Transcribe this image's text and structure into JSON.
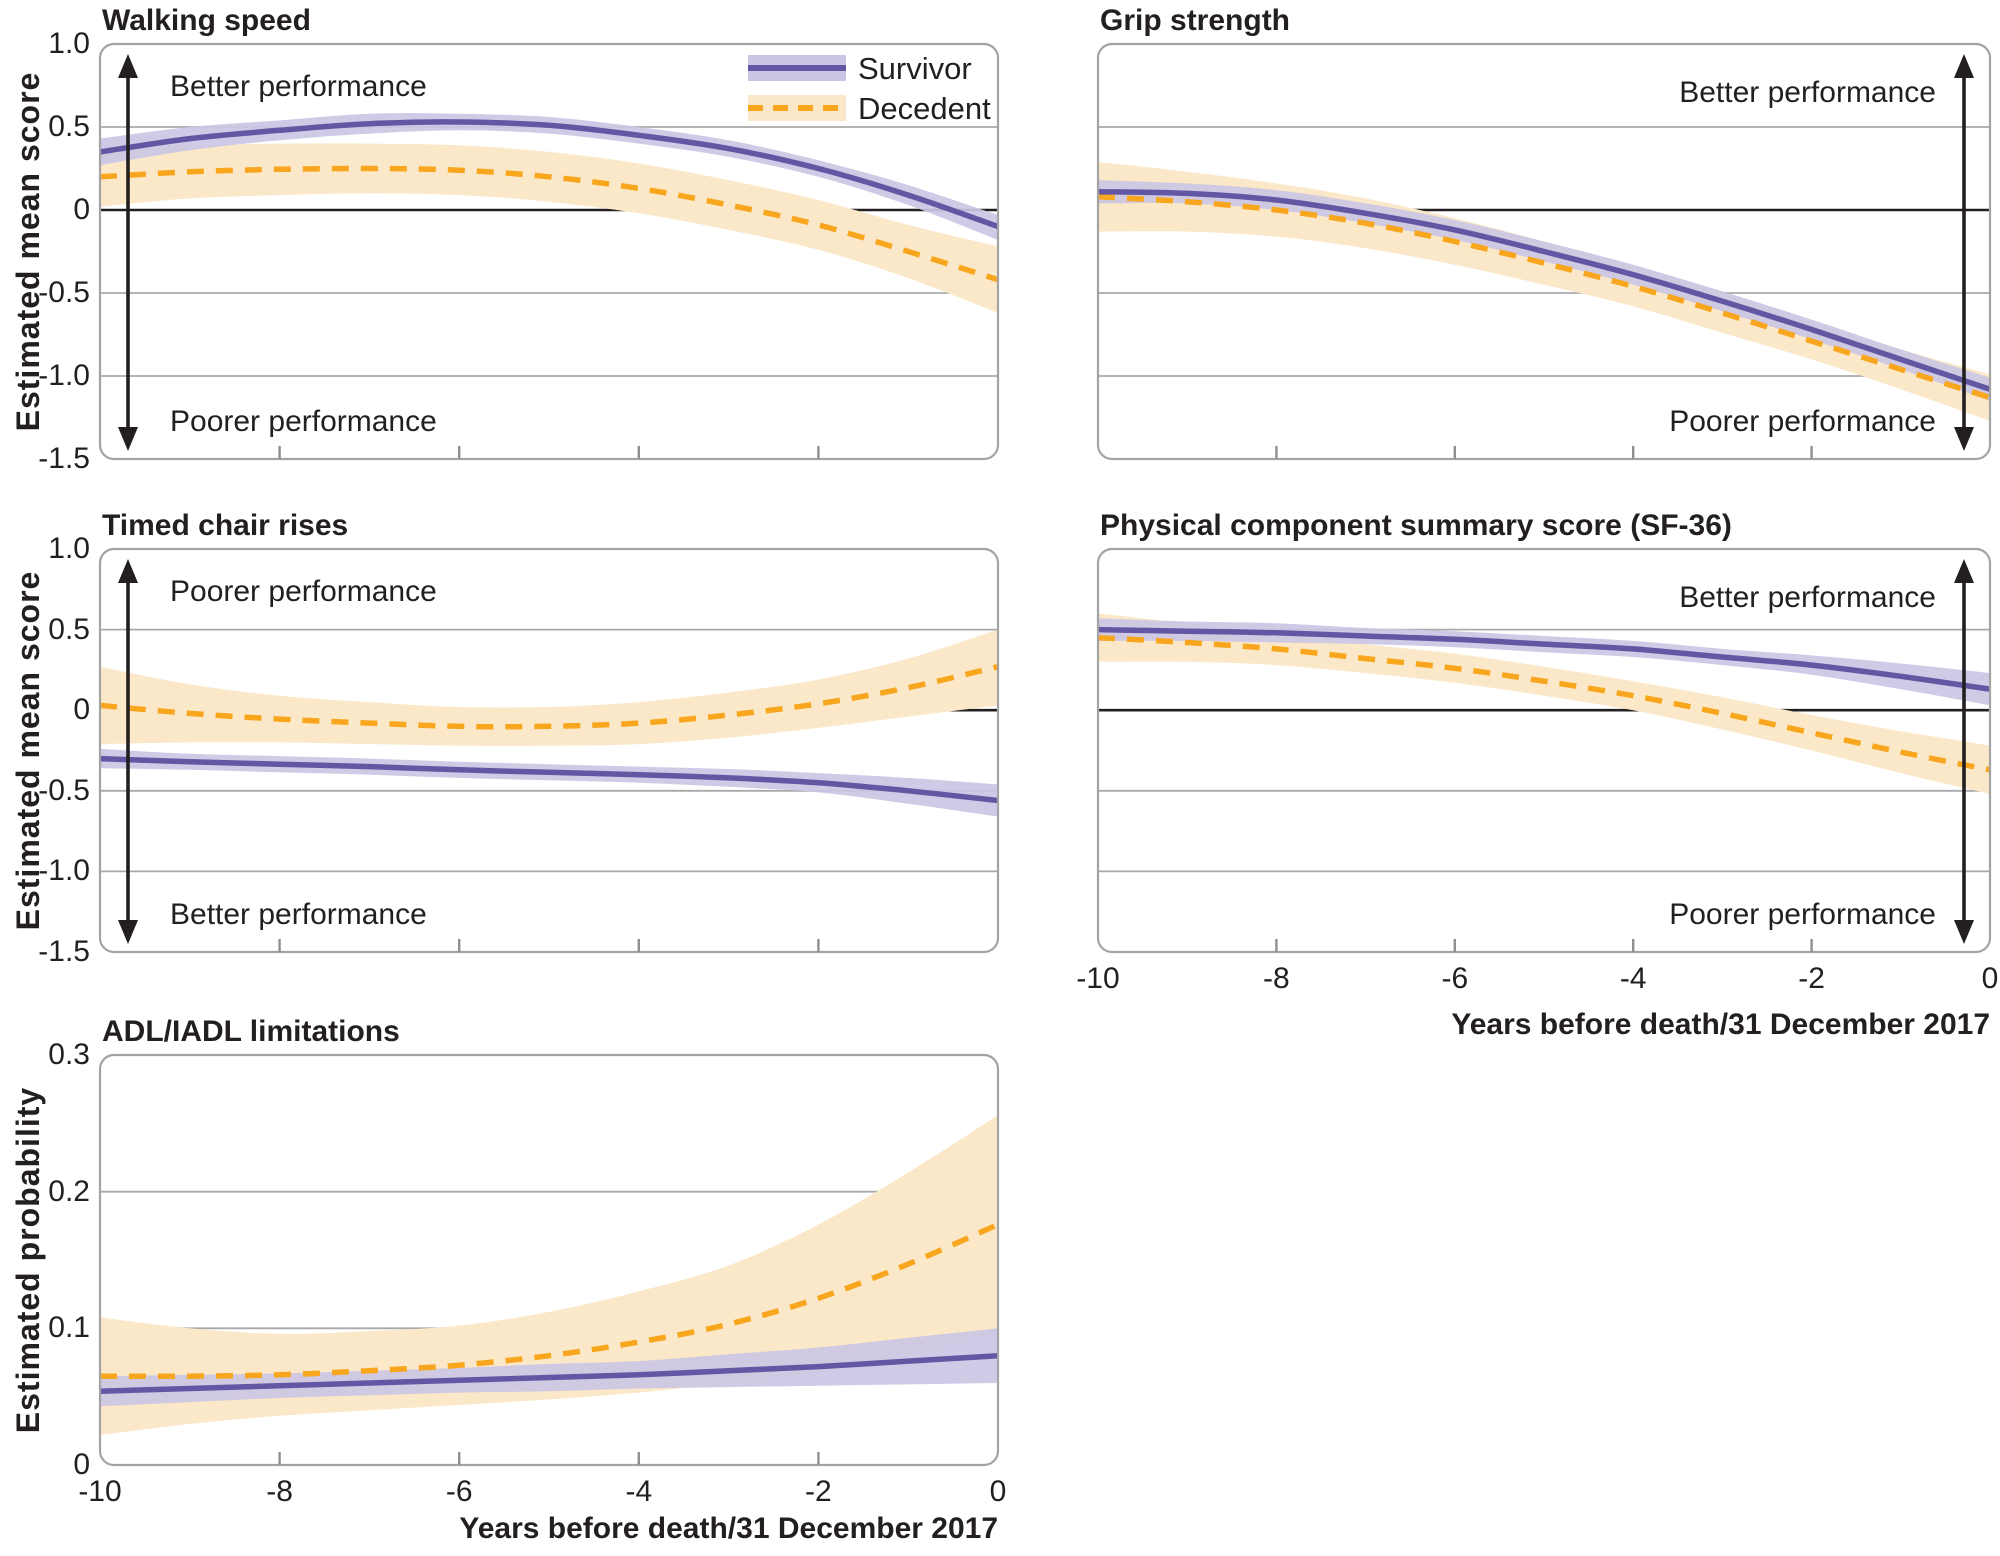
{
  "figure": {
    "x_tick_labels": [
      "-10",
      "-8",
      "-6",
      "-4",
      "-2",
      "0"
    ],
    "x_ticks": [
      -10,
      -8,
      -6,
      -4,
      -2,
      0
    ],
    "inner_x_ticks": [
      -8,
      -6,
      -4,
      -2
    ],
    "colors": {
      "survivor_line": "#6157A3",
      "survivor_band": "#CBC6E4",
      "decedent_line": "#F8A61E",
      "decedent_band": "#FBE8C9",
      "grid": "#A9A9A9",
      "panel_border": "#A3A3A3",
      "zero_line": "#231F20",
      "text": "#231F20",
      "tick": "#8F8F8F"
    }
  },
  "chart_data": [
    {
      "id": "walking-speed",
      "type": "line",
      "title": "Walking speed",
      "ylabel": "Estimated mean score",
      "xlabel": null,
      "ylim": [
        -1.5,
        1.0
      ],
      "xlim": [
        -10,
        0
      ],
      "y_ticks": [
        1.0,
        0.5,
        0,
        -0.5,
        -1.0,
        -1.5
      ],
      "y_tick_labels": [
        "1.0",
        "0.5",
        "0",
        "-0.5",
        "-1.0",
        "-1.5"
      ],
      "show_y_tick_labels": true,
      "show_x_tick_labels": false,
      "grid_y": [
        0.5,
        -0.5,
        -1.0
      ],
      "zero_line": true,
      "annotation": {
        "side": "left",
        "top": "Better performance",
        "bottom": "Poorer performance"
      },
      "legend": {
        "show": true,
        "position": "top-right",
        "entries": [
          "Survivor",
          "Decedent"
        ]
      },
      "x": [
        -10,
        -9,
        -8,
        -7,
        -6,
        -5,
        -4,
        -3,
        -2,
        -1,
        0
      ],
      "series": [
        {
          "name": "Decedent",
          "style": "dashed",
          "y": [
            0.2,
            0.23,
            0.245,
            0.25,
            0.24,
            0.2,
            0.13,
            0.03,
            -0.09,
            -0.25,
            -0.42
          ],
          "lo": [
            0.02,
            0.07,
            0.09,
            0.1,
            0.09,
            0.05,
            -0.02,
            -0.12,
            -0.24,
            -0.41,
            -0.62
          ],
          "hi": [
            0.38,
            0.39,
            0.4,
            0.4,
            0.39,
            0.35,
            0.28,
            0.18,
            0.06,
            -0.09,
            -0.22
          ]
        },
        {
          "name": "Survivor",
          "style": "solid",
          "y": [
            0.35,
            0.43,
            0.48,
            0.52,
            0.53,
            0.51,
            0.45,
            0.37,
            0.25,
            0.09,
            -0.1
          ],
          "lo": [
            0.27,
            0.36,
            0.42,
            0.46,
            0.48,
            0.46,
            0.4,
            0.32,
            0.2,
            0.03,
            -0.18
          ],
          "hi": [
            0.43,
            0.5,
            0.54,
            0.58,
            0.58,
            0.56,
            0.5,
            0.42,
            0.3,
            0.15,
            -0.03
          ]
        }
      ]
    },
    {
      "id": "grip-strength",
      "type": "line",
      "title": "Grip strength",
      "ylabel": null,
      "xlabel": null,
      "ylim": [
        -1.5,
        1.0
      ],
      "xlim": [
        -10,
        0
      ],
      "y_ticks": [
        1.0,
        0.5,
        0,
        -0.5,
        -1.0,
        -1.5
      ],
      "y_tick_labels": [],
      "show_y_tick_labels": false,
      "show_x_tick_labels": false,
      "grid_y": [
        0.5,
        -0.5,
        -1.0
      ],
      "zero_line": true,
      "annotation": {
        "side": "right",
        "top": "Better performance",
        "bottom": "Poorer performance"
      },
      "legend": {
        "show": false,
        "entries": []
      },
      "x": [
        -10,
        -9,
        -8,
        -7,
        -6,
        -5,
        -4,
        -3,
        -2,
        -1,
        0
      ],
      "series": [
        {
          "name": "Decedent",
          "style": "dashed",
          "y": [
            0.08,
            0.05,
            0.0,
            -0.08,
            -0.19,
            -0.32,
            -0.46,
            -0.62,
            -0.79,
            -0.96,
            -1.13
          ],
          "lo": [
            -0.13,
            -0.13,
            -0.16,
            -0.23,
            -0.33,
            -0.45,
            -0.58,
            -0.74,
            -0.9,
            -1.08,
            -1.27
          ],
          "hi": [
            0.29,
            0.23,
            0.16,
            0.07,
            -0.05,
            -0.19,
            -0.34,
            -0.5,
            -0.68,
            -0.84,
            -0.99
          ]
        },
        {
          "name": "Survivor",
          "style": "solid",
          "y": [
            0.11,
            0.1,
            0.06,
            -0.02,
            -0.12,
            -0.25,
            -0.39,
            -0.55,
            -0.72,
            -0.9,
            -1.08
          ],
          "lo": [
            0.04,
            0.04,
            0.0,
            -0.08,
            -0.18,
            -0.31,
            -0.45,
            -0.61,
            -0.78,
            -0.96,
            -1.15
          ],
          "hi": [
            0.18,
            0.16,
            0.12,
            0.04,
            -0.06,
            -0.19,
            -0.33,
            -0.49,
            -0.66,
            -0.84,
            -1.01
          ]
        }
      ]
    },
    {
      "id": "timed-chair-rises",
      "type": "line",
      "title": "Timed chair rises",
      "ylabel": "Estimated mean score",
      "xlabel": null,
      "ylim": [
        -1.5,
        1.0
      ],
      "xlim": [
        -10,
        0
      ],
      "y_ticks": [
        1.0,
        0.5,
        0,
        -0.5,
        -1.0,
        -1.5
      ],
      "y_tick_labels": [
        "1.0",
        "0.5",
        "0",
        "-0.5",
        "-1.0",
        "-1.5"
      ],
      "show_y_tick_labels": true,
      "show_x_tick_labels": false,
      "grid_y": [
        0.5,
        -0.5,
        -1.0
      ],
      "zero_line": true,
      "annotation": {
        "side": "left",
        "top": "Poorer performance",
        "bottom": "Better performance"
      },
      "legend": {
        "show": false,
        "entries": []
      },
      "x": [
        -10,
        -9,
        -8,
        -7,
        -6,
        -5,
        -4,
        -3,
        -2,
        -1,
        0
      ],
      "series": [
        {
          "name": "Decedent",
          "style": "dashed",
          "y": [
            0.03,
            -0.02,
            -0.055,
            -0.08,
            -0.1,
            -0.1,
            -0.08,
            -0.03,
            0.04,
            0.14,
            0.27
          ],
          "lo": [
            -0.21,
            -0.2,
            -0.2,
            -0.21,
            -0.22,
            -0.22,
            -0.21,
            -0.17,
            -0.11,
            -0.04,
            0.03
          ],
          "hi": [
            0.27,
            0.16,
            0.09,
            0.05,
            0.02,
            0.02,
            0.05,
            0.11,
            0.19,
            0.32,
            0.5
          ]
        },
        {
          "name": "Survivor",
          "style": "solid",
          "y": [
            -0.3,
            -0.32,
            -0.335,
            -0.35,
            -0.37,
            -0.385,
            -0.4,
            -0.42,
            -0.45,
            -0.5,
            -0.56
          ],
          "lo": [
            -0.36,
            -0.37,
            -0.385,
            -0.4,
            -0.42,
            -0.435,
            -0.45,
            -0.475,
            -0.51,
            -0.58,
            -0.66
          ],
          "hi": [
            -0.24,
            -0.27,
            -0.285,
            -0.3,
            -0.32,
            -0.335,
            -0.35,
            -0.365,
            -0.39,
            -0.42,
            -0.46
          ]
        }
      ]
    },
    {
      "id": "physical-component-summary-sf36",
      "type": "line",
      "title": "Physical component summary score (SF-36)",
      "ylabel": null,
      "xlabel": "Years before death/31 December 2017",
      "ylim": [
        -1.5,
        1.0
      ],
      "xlim": [
        -10,
        0
      ],
      "y_ticks": [
        1.0,
        0.5,
        0,
        -0.5,
        -1.0,
        -1.5
      ],
      "y_tick_labels": [],
      "show_y_tick_labels": false,
      "show_x_tick_labels": true,
      "grid_y": [
        0.5,
        -0.5,
        -1.0
      ],
      "zero_line": true,
      "annotation": {
        "side": "right",
        "top": "Better performance",
        "bottom": "Poorer performance"
      },
      "legend": {
        "show": false,
        "entries": []
      },
      "x": [
        -10,
        -9,
        -8,
        -7,
        -6,
        -5,
        -4,
        -3,
        -2,
        -1,
        0
      ],
      "series": [
        {
          "name": "Decedent",
          "style": "dashed",
          "y": [
            0.45,
            0.42,
            0.38,
            0.32,
            0.26,
            0.18,
            0.09,
            -0.02,
            -0.14,
            -0.26,
            -0.37
          ],
          "lo": [
            0.3,
            0.3,
            0.28,
            0.23,
            0.17,
            0.09,
            0.0,
            -0.12,
            -0.25,
            -0.39,
            -0.52
          ],
          "hi": [
            0.6,
            0.54,
            0.48,
            0.41,
            0.35,
            0.27,
            0.18,
            0.08,
            -0.03,
            -0.13,
            -0.22
          ]
        },
        {
          "name": "Survivor",
          "style": "solid",
          "y": [
            0.5,
            0.49,
            0.48,
            0.46,
            0.44,
            0.41,
            0.38,
            0.33,
            0.28,
            0.21,
            0.13
          ],
          "lo": [
            0.43,
            0.43,
            0.42,
            0.41,
            0.39,
            0.36,
            0.33,
            0.28,
            0.22,
            0.13,
            0.03
          ],
          "hi": [
            0.57,
            0.55,
            0.54,
            0.51,
            0.49,
            0.46,
            0.43,
            0.38,
            0.34,
            0.29,
            0.23
          ]
        }
      ]
    },
    {
      "id": "adl-iadl-limitations",
      "type": "line",
      "title": "ADL/IADL limitations",
      "ylabel": "Estimated probability",
      "xlabel": "Years before death/31 December 2017",
      "ylim": [
        0,
        0.3
      ],
      "xlim": [
        -10,
        0
      ],
      "y_ticks": [
        0.3,
        0.2,
        0.1,
        0
      ],
      "y_tick_labels": [
        "0.3",
        "0.2",
        "0.1",
        "0"
      ],
      "show_y_tick_labels": true,
      "show_x_tick_labels": true,
      "grid_y": [
        0.2,
        0.1
      ],
      "zero_line": false,
      "annotation": null,
      "legend": {
        "show": false,
        "entries": []
      },
      "x": [
        -10,
        -9,
        -8,
        -7,
        -6,
        -5,
        -4,
        -3,
        -2,
        -1,
        0
      ],
      "series": [
        {
          "name": "Decedent",
          "style": "dashed",
          "y": [
            0.065,
            0.065,
            0.066,
            0.069,
            0.073,
            0.08,
            0.09,
            0.103,
            0.122,
            0.147,
            0.176
          ],
          "lo": [
            0.022,
            0.03,
            0.036,
            0.04,
            0.044,
            0.048,
            0.053,
            0.06,
            0.068,
            0.08,
            0.098
          ],
          "hi": [
            0.108,
            0.1,
            0.096,
            0.098,
            0.102,
            0.112,
            0.127,
            0.146,
            0.176,
            0.214,
            0.256
          ]
        },
        {
          "name": "Survivor",
          "style": "solid",
          "y": [
            0.054,
            0.056,
            0.058,
            0.06,
            0.062,
            0.064,
            0.066,
            0.069,
            0.072,
            0.076,
            0.08
          ],
          "lo": [
            0.043,
            0.046,
            0.049,
            0.051,
            0.053,
            0.054,
            0.056,
            0.057,
            0.058,
            0.059,
            0.06
          ],
          "hi": [
            0.065,
            0.066,
            0.067,
            0.069,
            0.071,
            0.074,
            0.076,
            0.081,
            0.086,
            0.093,
            0.1
          ]
        }
      ]
    }
  ]
}
